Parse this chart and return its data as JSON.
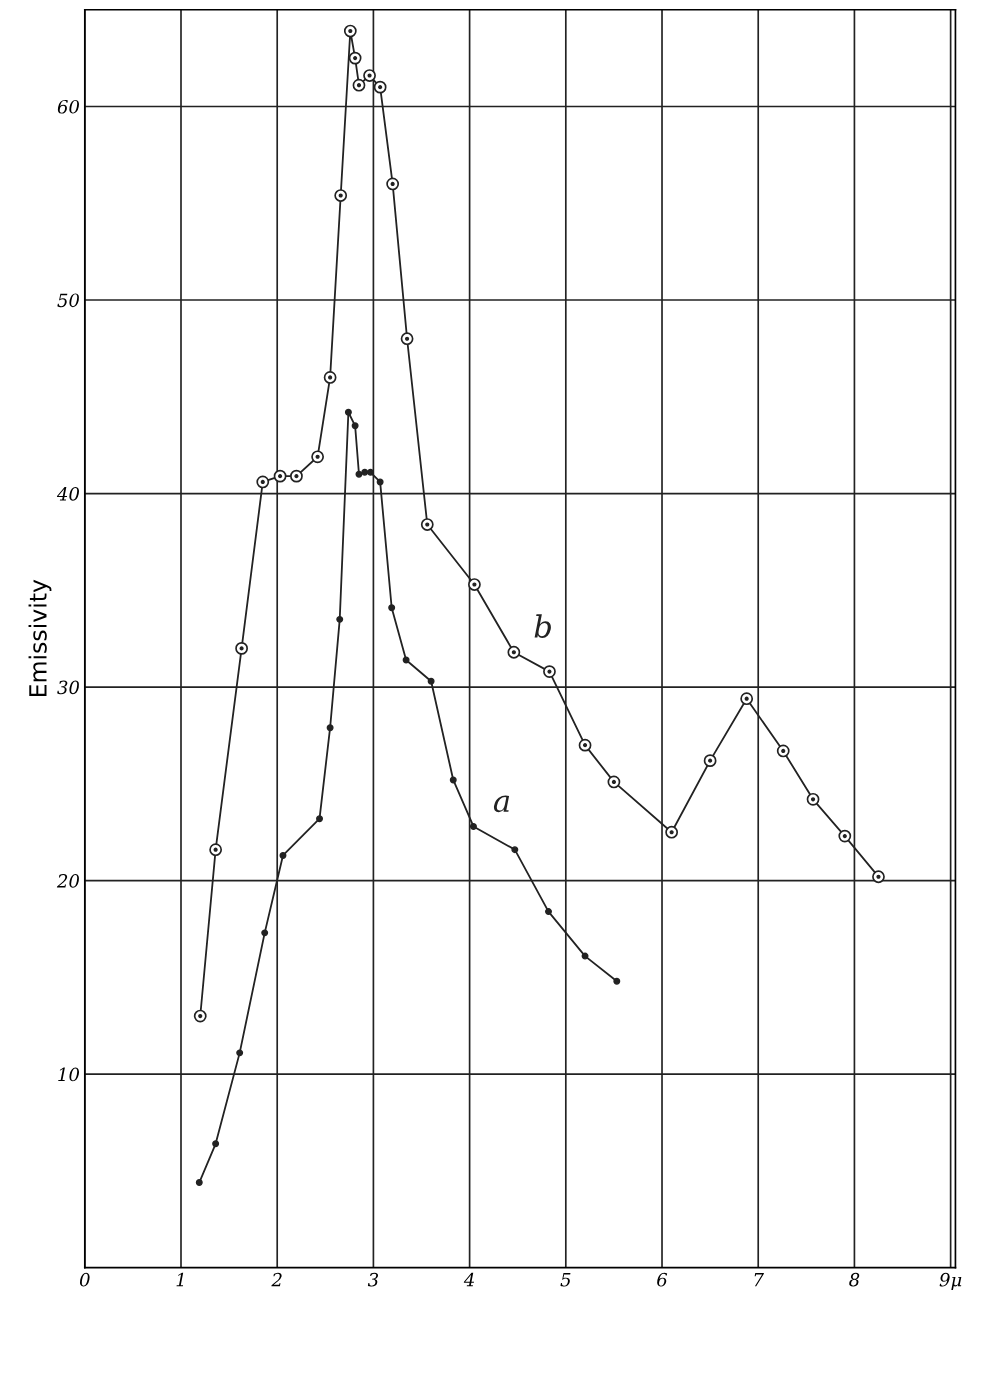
{
  "chart_data": {
    "type": "line",
    "ylabel": "Emissivity",
    "xlim": [
      0,
      9.05
    ],
    "ylim": [
      0,
      65
    ],
    "xticks": [
      0,
      1,
      2,
      3,
      4,
      5,
      6,
      7,
      8,
      {
        "value": 9,
        "label": "9μ"
      }
    ],
    "yticks": [
      10,
      20,
      30,
      40,
      50,
      60
    ],
    "grid": true,
    "legend": false,
    "marker": "circle",
    "line_style": "solid",
    "series": [
      {
        "name": "b",
        "color": "#222222",
        "x": [
          1.2,
          1.36,
          1.63,
          1.85,
          2.03,
          2.2,
          2.42,
          2.55,
          2.66,
          2.76,
          2.81,
          2.85,
          2.96,
          3.07,
          3.2,
          3.35,
          3.56,
          4.05,
          4.46,
          4.83,
          5.2,
          5.5,
          6.1,
          6.5,
          6.88,
          7.26,
          7.57,
          7.9,
          8.25
        ],
        "values": [
          13.0,
          21.6,
          32.0,
          40.6,
          40.9,
          40.9,
          41.9,
          46.0,
          55.4,
          63.9,
          62.5,
          61.1,
          61.6,
          61.0,
          56.0,
          48.0,
          38.4,
          35.3,
          31.8,
          30.8,
          27.0,
          25.1,
          22.5,
          26.2,
          29.4,
          26.7,
          24.2,
          22.3,
          20.2
        ]
      },
      {
        "name": "a",
        "color": "#222222",
        "x": [
          1.19,
          1.36,
          1.61,
          1.87,
          2.06,
          2.44,
          2.55,
          2.65,
          2.74,
          2.81,
          2.85,
          2.91,
          2.97,
          3.07,
          3.19,
          3.34,
          3.6,
          3.83,
          4.04,
          4.47,
          4.82,
          5.2,
          5.53
        ],
        "values": [
          4.4,
          6.4,
          11.1,
          17.3,
          21.3,
          23.2,
          27.9,
          33.5,
          44.2,
          43.5,
          41.0,
          41.1,
          41.1,
          40.6,
          34.1,
          31.4,
          30.3,
          25.2,
          22.8,
          21.6,
          18.4,
          16.1,
          14.8
        ]
      }
    ]
  }
}
